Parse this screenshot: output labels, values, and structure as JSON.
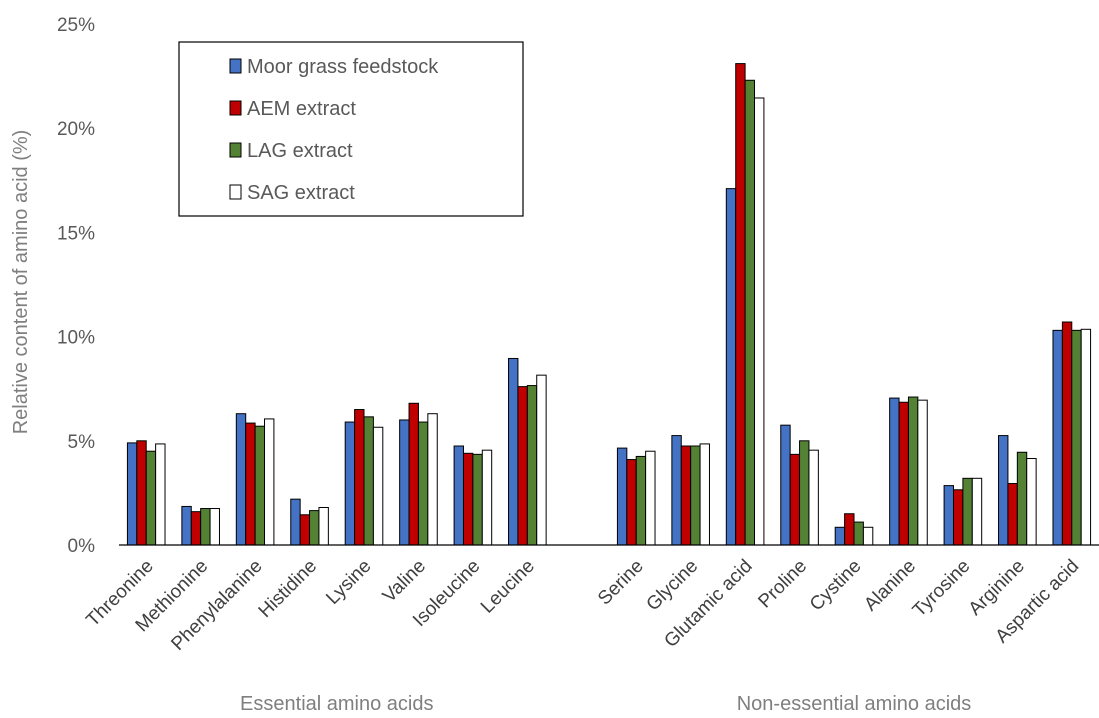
{
  "chart_data": {
    "type": "bar",
    "ylabel": "Relative content of amino acid (%)",
    "ylim": [
      0,
      25
    ],
    "yticks": [
      "0%",
      "5%",
      "10%",
      "15%",
      "20%",
      "25%"
    ],
    "y_tick_values": [
      0,
      5,
      10,
      15,
      20,
      25
    ],
    "grid": false,
    "legend_position": "top-left",
    "groups": [
      {
        "label": "Essential amino acids",
        "start": 0,
        "count": 8
      },
      {
        "label": "Non-essential amino acids",
        "start": 9,
        "count": 9
      }
    ],
    "categories": [
      "Threonine",
      "Methionine",
      "Phenylalanine",
      "Histidine",
      "Lysine",
      "Valine",
      "Isoleucine",
      "Leucine",
      "",
      "Serine",
      "Glycine",
      "Glutamic acid",
      "Proline",
      "Cystine",
      "Alanine",
      "Tyrosine",
      "Arginine",
      "Aspartic acid"
    ],
    "series": [
      {
        "name": "Moor grass feedstock",
        "color": "#4472c4",
        "values": [
          4.9,
          1.85,
          6.3,
          2.2,
          5.9,
          6.0,
          4.75,
          8.95,
          null,
          4.65,
          5.25,
          17.1,
          5.75,
          0.85,
          7.05,
          2.85,
          5.25,
          10.3
        ]
      },
      {
        "name": "AEM extract",
        "color": "#c00000",
        "values": [
          5.0,
          1.6,
          5.85,
          1.45,
          6.5,
          6.8,
          4.4,
          7.6,
          null,
          4.1,
          4.75,
          23.1,
          4.35,
          1.5,
          6.85,
          2.65,
          2.95,
          10.7
        ]
      },
      {
        "name": "LAG extract",
        "color": "#548235",
        "values": [
          4.5,
          1.75,
          5.7,
          1.65,
          6.15,
          5.9,
          4.35,
          7.65,
          null,
          4.25,
          4.75,
          22.3,
          5.0,
          1.1,
          7.1,
          3.2,
          4.45,
          10.3
        ]
      },
      {
        "name": "SAG extract",
        "color": "#ffffff",
        "values": [
          4.85,
          1.75,
          6.05,
          1.8,
          5.65,
          6.3,
          4.55,
          8.15,
          null,
          4.5,
          4.85,
          21.45,
          4.55,
          0.85,
          6.95,
          3.2,
          4.15,
          10.35
        ]
      }
    ]
  }
}
